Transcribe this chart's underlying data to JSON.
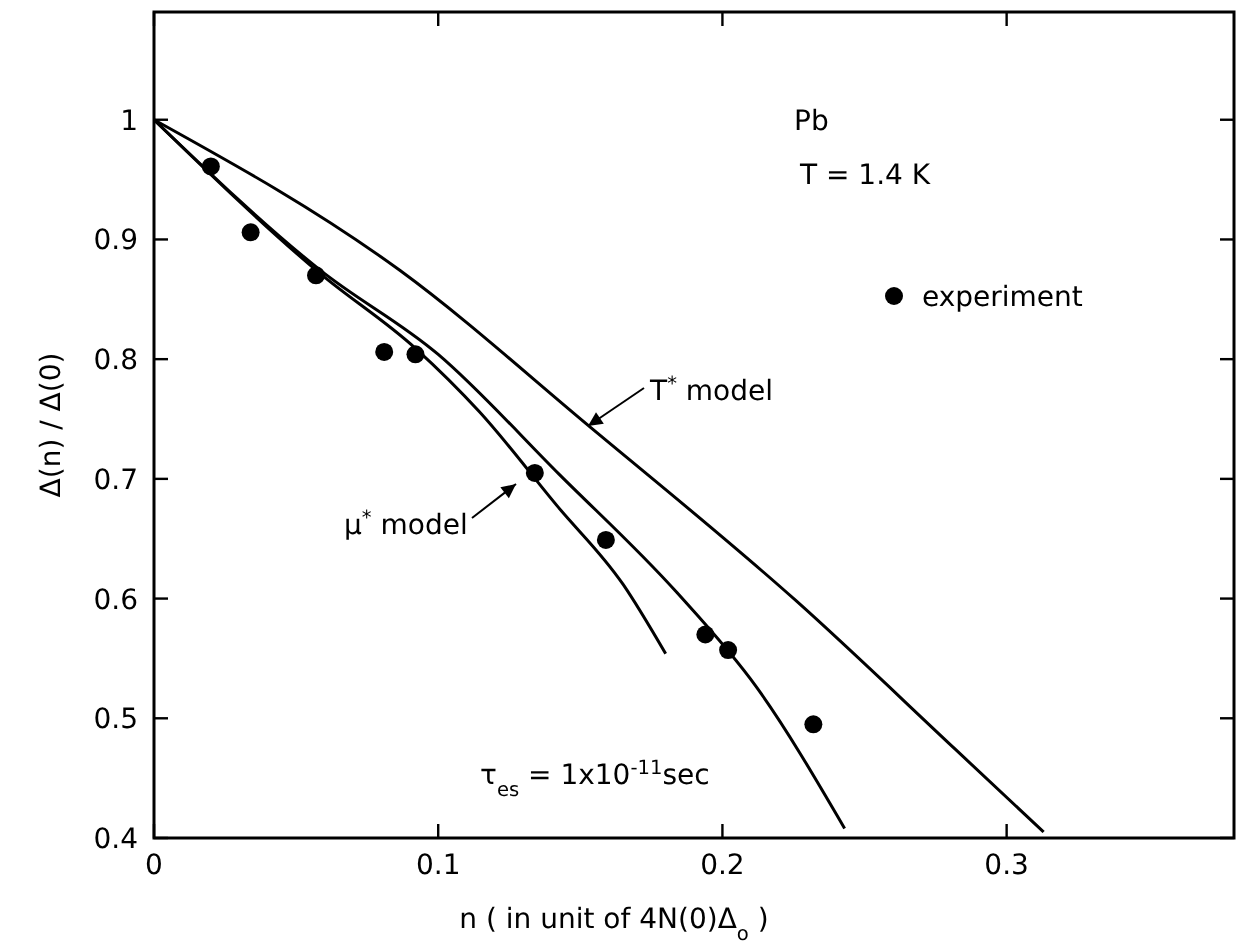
{
  "chart_data": {
    "type": "scatter",
    "xlabel": "n ( in unit of 4N(0)Δ$_{o}$ )",
    "ylabel": "Δ(n) / Δ(0)",
    "xlim": [
      0,
      0.38
    ],
    "ylim": [
      0.4,
      1.09
    ],
    "xticks": [
      0,
      0.1,
      0.2,
      0.3
    ],
    "yticks": [
      0.4,
      0.5,
      0.6,
      0.7,
      0.8,
      0.9,
      1
    ],
    "legend": "top right",
    "grid": false,
    "annotations": [
      "Pb",
      "T = 1.4 K",
      "τ$_{es}$ = 1x10$^{-11}$sec"
    ],
    "series": [
      {
        "name": "experiment",
        "marker": "circle",
        "color": "#000000",
        "x": [
          0.02,
          0.034,
          0.057,
          0.081,
          0.092,
          0.134,
          0.159,
          0.194,
          0.202,
          0.232
        ],
        "values": [
          0.961,
          0.906,
          0.87,
          0.806,
          0.804,
          0.705,
          0.649,
          0.57,
          0.557,
          0.495
        ]
      },
      {
        "name": "μ$^{*}$ model",
        "type": "line",
        "line_style": "solid",
        "color": "#000000",
        "x": [
          0,
          0.0587,
          0.092,
          0.1145,
          0.142,
          0.165,
          0.18
        ],
        "values": [
          1,
          0.871,
          0.809,
          0.756,
          0.677,
          0.612,
          0.554
        ]
      },
      {
        "type": "line",
        "line_style": "solid",
        "color": "#000000",
        "x": [
          0,
          0.0587,
          0.1,
          0.1425,
          0.184,
          0.212,
          0.243
        ],
        "values": [
          1,
          0.874,
          0.804,
          0.704,
          0.605,
          0.526,
          0.408
        ]
      },
      {
        "name": "T$^{*}$ model",
        "type": "line",
        "line_style": "solid",
        "color": "#000000",
        "x": [
          0,
          0.0866,
          0.1536,
          0.226,
          0.282,
          0.313
        ],
        "values": [
          1,
          0.874,
          0.743,
          0.598,
          0.474,
          0.405
        ]
      }
    ]
  }
}
